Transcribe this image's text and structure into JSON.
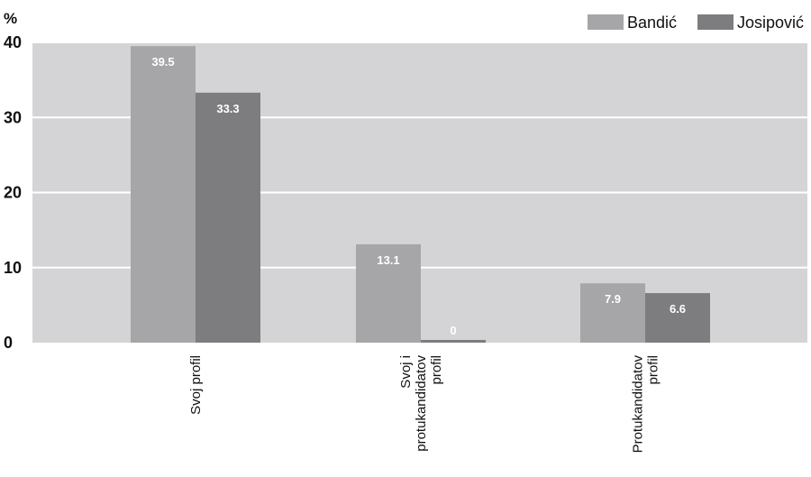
{
  "chart_data": {
    "type": "bar",
    "y_unit": "%",
    "categories": [
      [
        "Svoj profil"
      ],
      [
        "Svoj i",
        "protukandidatov",
        "profil"
      ],
      [
        "Protukandidatov",
        "profil"
      ]
    ],
    "series": [
      {
        "name": "Bandić",
        "values": [
          39.5,
          13.1,
          7.9
        ],
        "labels": [
          "39.5",
          "13.1",
          "7.9"
        ],
        "color": "#a6a6a8"
      },
      {
        "name": "Josipović",
        "values": [
          33.3,
          0,
          6.6
        ],
        "labels": [
          "33.3",
          "0",
          "6.6"
        ],
        "color": "#7d7d80"
      }
    ],
    "ylim": [
      0,
      40
    ],
    "yticks": [
      0,
      10,
      20,
      30,
      40
    ],
    "grid": true,
    "legend_position": "top-right",
    "plot_background": "#d4d4d6",
    "grid_color": "#ffffff"
  }
}
